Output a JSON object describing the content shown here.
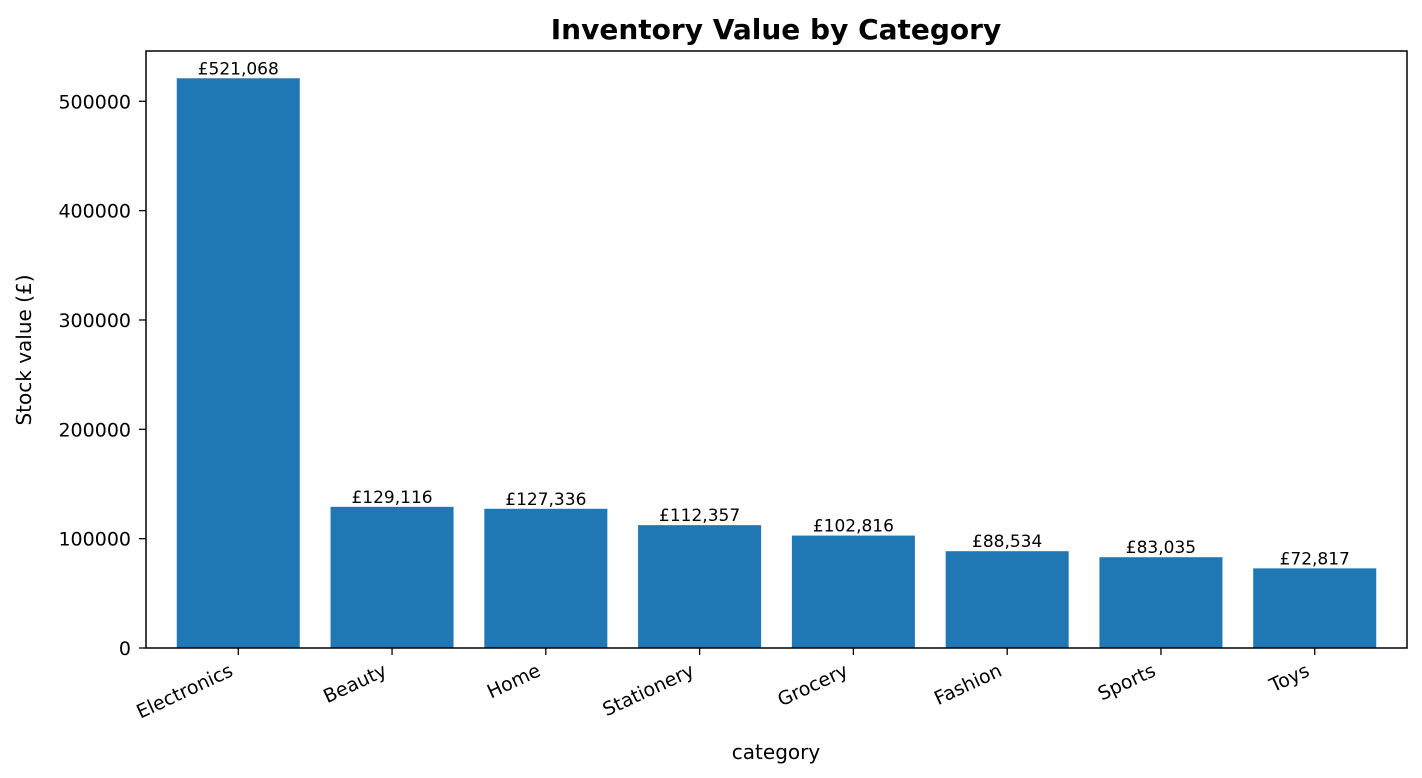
{
  "chart_data": {
    "type": "bar",
    "title": "Inventory Value by Category",
    "xlabel": "category",
    "ylabel": "Stock value (£)",
    "categories": [
      "Electronics",
      "Beauty",
      "Home",
      "Stationery",
      "Grocery",
      "Fashion",
      "Sports",
      "Toys"
    ],
    "values": [
      521068,
      129116,
      127336,
      112357,
      102816,
      88534,
      83035,
      72817
    ],
    "data_labels": [
      "£521,068",
      "£129,116",
      "£127,336",
      "£112,357",
      "£102,816",
      "£88,534",
      "£83,035",
      "£72,817"
    ],
    "ylim": [
      0,
      546000
    ],
    "yticks": [
      0,
      100000,
      200000,
      300000,
      400000,
      500000
    ],
    "ytick_labels": [
      "0",
      "100000",
      "200000",
      "300000",
      "400000",
      "500000"
    ],
    "bar_color": "#1f77b4",
    "grid": false,
    "legend": "none"
  }
}
